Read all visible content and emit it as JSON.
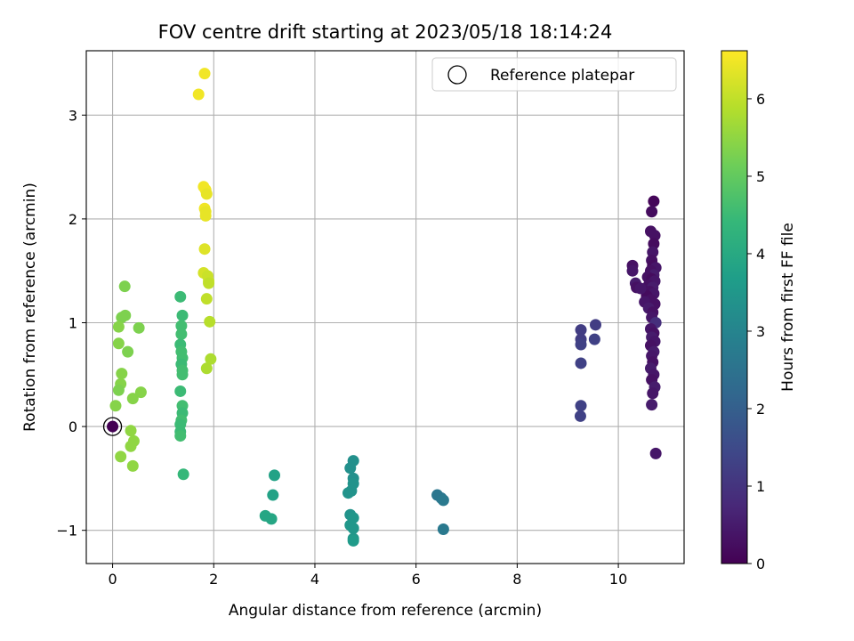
{
  "chart_data": {
    "type": "scatter",
    "title": "FOV centre drift starting at 2023/05/18 18:14:24",
    "xlabel": "Angular distance from reference (arcmin)",
    "ylabel": "Rotation from reference (arcmin)",
    "xlim": [
      -0.52,
      11.3
    ],
    "ylim": [
      -1.32,
      3.62
    ],
    "xticks": [
      0,
      2,
      4,
      6,
      8,
      10
    ],
    "yticks": [
      -1,
      0,
      1,
      2,
      3
    ],
    "grid": true,
    "legend": {
      "placement": "top-right",
      "entries": [
        "Reference platepar"
      ]
    },
    "colorbar": {
      "label": "Hours from first FF file",
      "colormap": "viridis",
      "range": [
        0,
        6.62
      ],
      "ticks": [
        0,
        1,
        2,
        3,
        4,
        5,
        6
      ]
    },
    "reference_point": {
      "x": 0,
      "y": 0
    },
    "colormap_stops": [
      "#440154",
      "#482878",
      "#3e4989",
      "#31688e",
      "#26828e",
      "#1f9e89",
      "#35b779",
      "#6ece58",
      "#b5de2b",
      "#fde725"
    ],
    "points": [
      {
        "x": 0.0,
        "y": 0.0,
        "h": 0.0
      },
      {
        "x": 10.7,
        "y": 2.17,
        "h": 0.1
      },
      {
        "x": 10.66,
        "y": 2.07,
        "h": 0.2
      },
      {
        "x": 10.64,
        "y": 1.88,
        "h": 0.3
      },
      {
        "x": 10.72,
        "y": 1.84,
        "h": 0.3
      },
      {
        "x": 10.7,
        "y": 1.76,
        "h": 0.2
      },
      {
        "x": 10.68,
        "y": 1.68,
        "h": 0.4
      },
      {
        "x": 10.66,
        "y": 1.6,
        "h": 0.3
      },
      {
        "x": 10.68,
        "y": 1.55,
        "h": 0.2
      },
      {
        "x": 10.74,
        "y": 1.53,
        "h": 0.4
      },
      {
        "x": 10.64,
        "y": 1.5,
        "h": 0.3
      },
      {
        "x": 10.7,
        "y": 1.46,
        "h": 0.5
      },
      {
        "x": 10.58,
        "y": 1.44,
        "h": 0.3
      },
      {
        "x": 10.66,
        "y": 1.42,
        "h": 0.2
      },
      {
        "x": 10.72,
        "y": 1.4,
        "h": 0.4
      },
      {
        "x": 10.6,
        "y": 1.36,
        "h": 0.3
      },
      {
        "x": 10.68,
        "y": 1.34,
        "h": 0.5
      },
      {
        "x": 10.62,
        "y": 1.3,
        "h": 0.3
      },
      {
        "x": 10.7,
        "y": 1.28,
        "h": 0.4
      },
      {
        "x": 10.56,
        "y": 1.26,
        "h": 0.2
      },
      {
        "x": 10.64,
        "y": 1.22,
        "h": 0.3
      },
      {
        "x": 10.52,
        "y": 1.2,
        "h": 0.4
      },
      {
        "x": 10.72,
        "y": 1.18,
        "h": 0.3
      },
      {
        "x": 10.6,
        "y": 1.14,
        "h": 0.5
      },
      {
        "x": 10.68,
        "y": 1.1,
        "h": 0.3
      },
      {
        "x": 10.66,
        "y": 1.05,
        "h": 0.4
      },
      {
        "x": 10.74,
        "y": 1.0,
        "h": 0.9
      },
      {
        "x": 10.64,
        "y": 0.94,
        "h": 0.4
      },
      {
        "x": 10.7,
        "y": 0.9,
        "h": 0.3
      },
      {
        "x": 10.66,
        "y": 0.86,
        "h": 0.5
      },
      {
        "x": 10.72,
        "y": 0.82,
        "h": 0.4
      },
      {
        "x": 10.64,
        "y": 0.78,
        "h": 0.3
      },
      {
        "x": 10.7,
        "y": 0.72,
        "h": 0.5
      },
      {
        "x": 10.66,
        "y": 0.68,
        "h": 0.4
      },
      {
        "x": 10.68,
        "y": 0.62,
        "h": 0.3
      },
      {
        "x": 10.64,
        "y": 0.56,
        "h": 0.5
      },
      {
        "x": 10.7,
        "y": 0.5,
        "h": 0.4
      },
      {
        "x": 10.66,
        "y": 0.45,
        "h": 0.3
      },
      {
        "x": 10.72,
        "y": 0.38,
        "h": 0.5
      },
      {
        "x": 10.68,
        "y": 0.32,
        "h": 0.4
      },
      {
        "x": 10.66,
        "y": 0.21,
        "h": 0.5
      },
      {
        "x": 10.74,
        "y": -0.26,
        "h": 0.4
      },
      {
        "x": 10.28,
        "y": 1.55,
        "h": 0.3
      },
      {
        "x": 10.28,
        "y": 1.5,
        "h": 0.4
      },
      {
        "x": 10.34,
        "y": 1.38,
        "h": 0.5
      },
      {
        "x": 10.36,
        "y": 1.34,
        "h": 0.3
      },
      {
        "x": 10.44,
        "y": 1.33,
        "h": 0.4
      },
      {
        "x": 9.26,
        "y": 0.93,
        "h": 1.2
      },
      {
        "x": 9.55,
        "y": 0.98,
        "h": 1.2
      },
      {
        "x": 9.26,
        "y": 0.84,
        "h": 1.2
      },
      {
        "x": 9.53,
        "y": 0.84,
        "h": 1.3
      },
      {
        "x": 9.26,
        "y": 0.79,
        "h": 1.3
      },
      {
        "x": 9.26,
        "y": 0.61,
        "h": 1.3
      },
      {
        "x": 9.26,
        "y": 0.2,
        "h": 1.3
      },
      {
        "x": 9.25,
        "y": 0.1,
        "h": 1.3
      },
      {
        "x": 6.42,
        "y": -0.66,
        "h": 2.6
      },
      {
        "x": 6.5,
        "y": -0.69,
        "h": 2.6
      },
      {
        "x": 6.54,
        "y": -0.71,
        "h": 2.7
      },
      {
        "x": 6.54,
        "y": -0.99,
        "h": 2.7
      },
      {
        "x": 4.76,
        "y": -0.33,
        "h": 3.3
      },
      {
        "x": 4.7,
        "y": -0.4,
        "h": 3.3
      },
      {
        "x": 4.76,
        "y": -0.5,
        "h": 3.3
      },
      {
        "x": 4.76,
        "y": -0.55,
        "h": 3.4
      },
      {
        "x": 4.72,
        "y": -0.62,
        "h": 3.4
      },
      {
        "x": 4.66,
        "y": -0.64,
        "h": 3.4
      },
      {
        "x": 4.7,
        "y": -0.85,
        "h": 3.4
      },
      {
        "x": 4.76,
        "y": -0.88,
        "h": 3.5
      },
      {
        "x": 4.7,
        "y": -0.95,
        "h": 3.5
      },
      {
        "x": 4.76,
        "y": -0.98,
        "h": 3.5
      },
      {
        "x": 4.76,
        "y": -1.08,
        "h": 3.5
      },
      {
        "x": 4.76,
        "y": -1.1,
        "h": 3.6
      },
      {
        "x": 3.2,
        "y": -0.47,
        "h": 3.8
      },
      {
        "x": 3.17,
        "y": -0.66,
        "h": 3.8
      },
      {
        "x": 3.02,
        "y": -0.86,
        "h": 3.9
      },
      {
        "x": 3.14,
        "y": -0.89,
        "h": 3.9
      },
      {
        "x": 1.34,
        "y": 1.25,
        "h": 4.5
      },
      {
        "x": 1.38,
        "y": 1.07,
        "h": 4.5
      },
      {
        "x": 1.36,
        "y": 0.97,
        "h": 4.6
      },
      {
        "x": 1.36,
        "y": 0.89,
        "h": 4.6
      },
      {
        "x": 1.34,
        "y": 0.79,
        "h": 4.5
      },
      {
        "x": 1.36,
        "y": 0.72,
        "h": 4.6
      },
      {
        "x": 1.38,
        "y": 0.66,
        "h": 4.6
      },
      {
        "x": 1.36,
        "y": 0.6,
        "h": 4.5
      },
      {
        "x": 1.38,
        "y": 0.54,
        "h": 4.6
      },
      {
        "x": 1.38,
        "y": 0.5,
        "h": 4.6
      },
      {
        "x": 1.34,
        "y": 0.34,
        "h": 4.5
      },
      {
        "x": 1.38,
        "y": 0.2,
        "h": 4.6
      },
      {
        "x": 1.38,
        "y": 0.13,
        "h": 4.5
      },
      {
        "x": 1.36,
        "y": 0.06,
        "h": 4.6
      },
      {
        "x": 1.34,
        "y": 0.02,
        "h": 4.5
      },
      {
        "x": 1.34,
        "y": -0.05,
        "h": 4.5
      },
      {
        "x": 1.34,
        "y": -0.09,
        "h": 4.6
      },
      {
        "x": 1.4,
        "y": -0.46,
        "h": 4.4
      },
      {
        "x": 0.24,
        "y": 1.35,
        "h": 5.3
      },
      {
        "x": 0.25,
        "y": 1.07,
        "h": 5.3
      },
      {
        "x": 0.18,
        "y": 1.05,
        "h": 5.3
      },
      {
        "x": 0.12,
        "y": 0.96,
        "h": 5.4
      },
      {
        "x": 0.52,
        "y": 0.95,
        "h": 5.3
      },
      {
        "x": 0.12,
        "y": 0.8,
        "h": 5.4
      },
      {
        "x": 0.3,
        "y": 0.72,
        "h": 5.3
      },
      {
        "x": 0.18,
        "y": 0.51,
        "h": 5.4
      },
      {
        "x": 0.16,
        "y": 0.41,
        "h": 5.4
      },
      {
        "x": 0.12,
        "y": 0.35,
        "h": 5.3
      },
      {
        "x": 0.56,
        "y": 0.33,
        "h": 5.4
      },
      {
        "x": 0.4,
        "y": 0.27,
        "h": 5.4
      },
      {
        "x": 0.06,
        "y": 0.2,
        "h": 5.4
      },
      {
        "x": 0.36,
        "y": -0.04,
        "h": 5.5
      },
      {
        "x": 0.42,
        "y": -0.14,
        "h": 5.5
      },
      {
        "x": 0.36,
        "y": -0.19,
        "h": 5.5
      },
      {
        "x": 0.16,
        "y": -0.29,
        "h": 5.5
      },
      {
        "x": 0.4,
        "y": -0.38,
        "h": 5.5
      },
      {
        "x": 1.82,
        "y": 3.4,
        "h": 6.5
      },
      {
        "x": 1.7,
        "y": 3.2,
        "h": 6.5
      },
      {
        "x": 1.8,
        "y": 2.31,
        "h": 6.5
      },
      {
        "x": 1.84,
        "y": 2.28,
        "h": 6.5
      },
      {
        "x": 1.86,
        "y": 2.24,
        "h": 6.4
      },
      {
        "x": 1.82,
        "y": 2.1,
        "h": 6.5
      },
      {
        "x": 1.84,
        "y": 2.07,
        "h": 6.4
      },
      {
        "x": 1.84,
        "y": 2.03,
        "h": 6.4
      },
      {
        "x": 1.82,
        "y": 1.71,
        "h": 6.3
      },
      {
        "x": 1.8,
        "y": 1.48,
        "h": 6.2
      },
      {
        "x": 1.88,
        "y": 1.45,
        "h": 6.1
      },
      {
        "x": 1.9,
        "y": 1.4,
        "h": 6.1
      },
      {
        "x": 1.9,
        "y": 1.38,
        "h": 6.0
      },
      {
        "x": 1.86,
        "y": 1.23,
        "h": 6.0
      },
      {
        "x": 1.92,
        "y": 1.01,
        "h": 5.9
      },
      {
        "x": 1.94,
        "y": 0.65,
        "h": 5.8
      },
      {
        "x": 1.86,
        "y": 0.56,
        "h": 5.8
      }
    ]
  }
}
